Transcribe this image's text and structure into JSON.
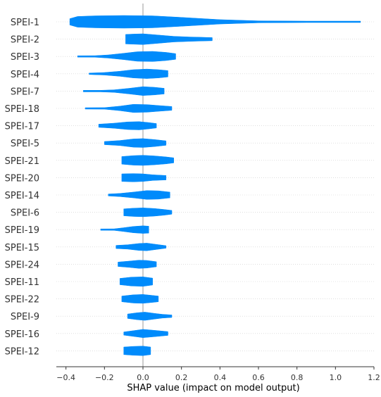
{
  "chart_data": {
    "type": "violin",
    "xlabel": "SHAP value (impact on model output)",
    "xlim": [
      -0.45,
      1.2
    ],
    "xticks": [
      {
        "v": -0.4,
        "label": "−0.4"
      },
      {
        "v": -0.2,
        "label": "−0.2"
      },
      {
        "v": 0.0,
        "label": "0.0"
      },
      {
        "v": 0.2,
        "label": "0.2"
      },
      {
        "v": 0.4,
        "label": "0.4"
      },
      {
        "v": 0.6,
        "label": "0.6"
      },
      {
        "v": 0.8,
        "label": "0.8"
      },
      {
        "v": 1.0,
        "label": "1.0"
      },
      {
        "v": 1.2,
        "label": "1.2"
      }
    ],
    "features": [
      "SPEI-1",
      "SPEI-2",
      "SPEI-3",
      "SPEI-4",
      "SPEI-7",
      "SPEI-18",
      "SPEI-17",
      "SPEI-5",
      "SPEI-21",
      "SPEI-20",
      "SPEI-14",
      "SPEI-6",
      "SPEI-19",
      "SPEI-15",
      "SPEI-24",
      "SPEI-11",
      "SPEI-22",
      "SPEI-9",
      "SPEI-16",
      "SPEI-12"
    ],
    "violins": [
      {
        "feature": "SPEI-1",
        "min": -0.38,
        "max": 1.13,
        "profile": [
          [
            -0.38,
            0.5
          ],
          [
            -0.34,
            0.85
          ],
          [
            -0.25,
            0.95
          ],
          [
            -0.1,
            1.0
          ],
          [
            0.05,
            0.95
          ],
          [
            0.2,
            0.7
          ],
          [
            0.4,
            0.35
          ],
          [
            0.6,
            0.15
          ],
          [
            0.85,
            0.09
          ],
          [
            1.13,
            0.06
          ]
        ]
      },
      {
        "feature": "SPEI-2",
        "min": -0.09,
        "max": 0.36,
        "profile": [
          [
            -0.09,
            0.75
          ],
          [
            -0.05,
            0.8
          ],
          [
            0.0,
            0.85
          ],
          [
            0.08,
            0.65
          ],
          [
            0.16,
            0.45
          ],
          [
            0.24,
            0.35
          ],
          [
            0.3,
            0.3
          ],
          [
            0.36,
            0.25
          ]
        ]
      },
      {
        "feature": "SPEI-3",
        "min": -0.34,
        "max": 0.17,
        "profile": [
          [
            -0.34,
            0.06
          ],
          [
            -0.25,
            0.12
          ],
          [
            -0.18,
            0.25
          ],
          [
            -0.1,
            0.5
          ],
          [
            -0.03,
            0.75
          ],
          [
            0.05,
            0.8
          ],
          [
            0.12,
            0.65
          ],
          [
            0.17,
            0.45
          ]
        ]
      },
      {
        "feature": "SPEI-4",
        "min": -0.28,
        "max": 0.13,
        "profile": [
          [
            -0.28,
            0.08
          ],
          [
            -0.2,
            0.2
          ],
          [
            -0.12,
            0.4
          ],
          [
            -0.05,
            0.65
          ],
          [
            0.02,
            0.75
          ],
          [
            0.08,
            0.65
          ],
          [
            0.13,
            0.5
          ]
        ]
      },
      {
        "feature": "SPEI-7",
        "min": -0.31,
        "max": 0.11,
        "profile": [
          [
            -0.31,
            0.12
          ],
          [
            -0.22,
            0.12
          ],
          [
            -0.15,
            0.2
          ],
          [
            -0.07,
            0.45
          ],
          [
            0.0,
            0.7
          ],
          [
            0.06,
            0.6
          ],
          [
            0.11,
            0.45
          ]
        ]
      },
      {
        "feature": "SPEI-18",
        "min": -0.3,
        "max": 0.15,
        "profile": [
          [
            -0.3,
            0.06
          ],
          [
            -0.2,
            0.12
          ],
          [
            -0.12,
            0.35
          ],
          [
            -0.05,
            0.65
          ],
          [
            0.02,
            0.6
          ],
          [
            0.08,
            0.45
          ],
          [
            0.15,
            0.3
          ]
        ]
      },
      {
        "feature": "SPEI-17",
        "min": -0.23,
        "max": 0.07,
        "profile": [
          [
            -0.23,
            0.25
          ],
          [
            -0.15,
            0.4
          ],
          [
            -0.08,
            0.6
          ],
          [
            -0.02,
            0.65
          ],
          [
            0.03,
            0.5
          ],
          [
            0.07,
            0.35
          ]
        ]
      },
      {
        "feature": "SPEI-5",
        "min": -0.2,
        "max": 0.12,
        "profile": [
          [
            -0.2,
            0.25
          ],
          [
            -0.12,
            0.4
          ],
          [
            -0.05,
            0.65
          ],
          [
            0.0,
            0.7
          ],
          [
            0.06,
            0.55
          ],
          [
            0.12,
            0.35
          ]
        ]
      },
      {
        "feature": "SPEI-21",
        "min": -0.11,
        "max": 0.16,
        "profile": [
          [
            -0.11,
            0.6
          ],
          [
            -0.05,
            0.75
          ],
          [
            0.0,
            0.8
          ],
          [
            0.06,
            0.7
          ],
          [
            0.12,
            0.55
          ],
          [
            0.16,
            0.4
          ]
        ]
      },
      {
        "feature": "SPEI-20",
        "min": -0.11,
        "max": 0.12,
        "profile": [
          [
            -0.11,
            0.6
          ],
          [
            -0.05,
            0.65
          ],
          [
            0.0,
            0.6
          ],
          [
            0.05,
            0.45
          ],
          [
            0.12,
            0.35
          ]
        ]
      },
      {
        "feature": "SPEI-14",
        "min": -0.18,
        "max": 0.14,
        "profile": [
          [
            -0.18,
            0.15
          ],
          [
            -0.12,
            0.25
          ],
          [
            -0.05,
            0.45
          ],
          [
            0.02,
            0.7
          ],
          [
            0.08,
            0.65
          ],
          [
            0.14,
            0.45
          ]
        ]
      },
      {
        "feature": "SPEI-6",
        "min": -0.1,
        "max": 0.15,
        "profile": [
          [
            -0.1,
            0.55
          ],
          [
            -0.05,
            0.65
          ],
          [
            0.0,
            0.7
          ],
          [
            0.06,
            0.6
          ],
          [
            0.11,
            0.45
          ],
          [
            0.15,
            0.3
          ]
        ]
      },
      {
        "feature": "SPEI-19",
        "min": -0.22,
        "max": 0.03,
        "profile": [
          [
            -0.22,
            0.06
          ],
          [
            -0.15,
            0.12
          ],
          [
            -0.1,
            0.3
          ],
          [
            -0.05,
            0.5
          ],
          [
            0.0,
            0.6
          ],
          [
            0.03,
            0.55
          ]
        ]
      },
      {
        "feature": "SPEI-15",
        "min": -0.14,
        "max": 0.12,
        "profile": [
          [
            -0.14,
            0.25
          ],
          [
            -0.08,
            0.35
          ],
          [
            -0.02,
            0.55
          ],
          [
            0.02,
            0.6
          ],
          [
            0.07,
            0.4
          ],
          [
            0.12,
            0.2
          ]
        ]
      },
      {
        "feature": "SPEI-24",
        "min": -0.13,
        "max": 0.07,
        "profile": [
          [
            -0.13,
            0.35
          ],
          [
            -0.07,
            0.5
          ],
          [
            -0.02,
            0.65
          ],
          [
            0.02,
            0.6
          ],
          [
            0.07,
            0.4
          ]
        ]
      },
      {
        "feature": "SPEI-11",
        "min": -0.12,
        "max": 0.05,
        "profile": [
          [
            -0.12,
            0.5
          ],
          [
            -0.06,
            0.7
          ],
          [
            0.0,
            0.75
          ],
          [
            0.05,
            0.55
          ]
        ]
      },
      {
        "feature": "SPEI-22",
        "min": -0.11,
        "max": 0.08,
        "profile": [
          [
            -0.11,
            0.45
          ],
          [
            -0.05,
            0.65
          ],
          [
            0.0,
            0.7
          ],
          [
            0.05,
            0.55
          ],
          [
            0.08,
            0.45
          ]
        ]
      },
      {
        "feature": "SPEI-9",
        "min": -0.08,
        "max": 0.15,
        "profile": [
          [
            -0.08,
            0.35
          ],
          [
            -0.03,
            0.55
          ],
          [
            0.01,
            0.65
          ],
          [
            0.06,
            0.45
          ],
          [
            0.1,
            0.3
          ],
          [
            0.15,
            0.2
          ]
        ]
      },
      {
        "feature": "SPEI-16",
        "min": -0.1,
        "max": 0.13,
        "profile": [
          [
            -0.1,
            0.25
          ],
          [
            -0.05,
            0.45
          ],
          [
            0.0,
            0.65
          ],
          [
            0.06,
            0.5
          ],
          [
            0.13,
            0.3
          ]
        ]
      },
      {
        "feature": "SPEI-12",
        "min": -0.1,
        "max": 0.04,
        "profile": [
          [
            -0.1,
            0.6
          ],
          [
            -0.05,
            0.7
          ],
          [
            0.0,
            0.75
          ],
          [
            0.04,
            0.6
          ]
        ]
      }
    ],
    "color": "#008bfb",
    "gridlines": "horizontal dashed"
  }
}
